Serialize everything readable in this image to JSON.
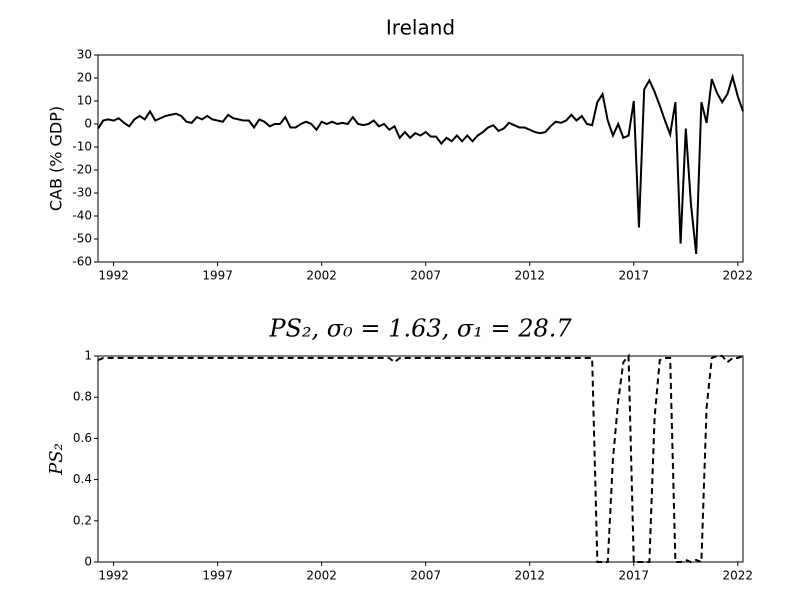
{
  "chart_data": [
    {
      "type": "line",
      "title": "Ireland",
      "ylabel": "CAB (% GDP)",
      "color": "#000000",
      "linestyle": "solid",
      "xlim": [
        1991.25,
        2022.25
      ],
      "xticks": [
        1992,
        1997,
        2002,
        2007,
        2012,
        2017,
        2022
      ],
      "ylim": [
        -60,
        30
      ],
      "yticks": [
        -60,
        -50,
        -40,
        -30,
        -20,
        -10,
        0,
        10,
        20,
        30
      ],
      "x": [
        1991.25,
        1991.5,
        1991.75,
        1992,
        1992.25,
        1992.5,
        1992.75,
        1993,
        1993.25,
        1993.5,
        1993.75,
        1994,
        1994.25,
        1994.5,
        1994.75,
        1995,
        1995.25,
        1995.5,
        1995.75,
        1996,
        1996.25,
        1996.5,
        1996.75,
        1997,
        1997.25,
        1997.5,
        1997.75,
        1998,
        1998.25,
        1998.5,
        1998.75,
        1999,
        1999.25,
        1999.5,
        1999.75,
        2000,
        2000.25,
        2000.5,
        2000.75,
        2001,
        2001.25,
        2001.5,
        2001.75,
        2002,
        2002.25,
        2002.5,
        2002.75,
        2003,
        2003.25,
        2003.5,
        2003.75,
        2004,
        2004.25,
        2004.5,
        2004.75,
        2005,
        2005.25,
        2005.5,
        2005.75,
        2006,
        2006.25,
        2006.5,
        2006.75,
        2007,
        2007.25,
        2007.5,
        2007.75,
        2008,
        2008.25,
        2008.5,
        2008.75,
        2009,
        2009.25,
        2009.5,
        2009.75,
        2010,
        2010.25,
        2010.5,
        2010.75,
        2011,
        2011.25,
        2011.5,
        2011.75,
        2012,
        2012.25,
        2012.5,
        2012.75,
        2013,
        2013.25,
        2013.5,
        2013.75,
        2014,
        2014.25,
        2014.5,
        2014.75,
        2015,
        2015.25,
        2015.5,
        2015.75,
        2016,
        2016.25,
        2016.5,
        2016.75,
        2017,
        2017.25,
        2017.5,
        2017.75,
        2018,
        2018.25,
        2018.5,
        2018.75,
        2019,
        2019.25,
        2019.5,
        2019.75,
        2020,
        2020.25,
        2020.5,
        2020.75,
        2021,
        2021.25,
        2021.5,
        2021.75,
        2022,
        2022.25
      ],
      "values": [
        -2,
        1.5,
        2,
        1.5,
        2.5,
        0.5,
        -1,
        2,
        3.5,
        2,
        5.5,
        1.5,
        2.5,
        3.5,
        4,
        4.5,
        3.5,
        1,
        0.5,
        3,
        2,
        3.5,
        2,
        1.5,
        1,
        4,
        2.5,
        2,
        1.5,
        1.5,
        -1.5,
        2,
        1,
        -1,
        0,
        0,
        3,
        -1.5,
        -1.5,
        0,
        1,
        0,
        -2.5,
        1,
        0,
        1,
        0,
        0.5,
        0,
        3,
        0,
        -0.5,
        0,
        1.5,
        -1,
        0,
        -2.5,
        -1,
        -6,
        -3.5,
        -6,
        -4,
        -5,
        -3.5,
        -5.5,
        -5.5,
        -8.5,
        -6,
        -7.5,
        -5,
        -7.5,
        -5,
        -7.5,
        -5,
        -3.5,
        -1.5,
        -0.5,
        -3,
        -2,
        0.5,
        -0.5,
        -1.5,
        -1.5,
        -2.5,
        -3.5,
        -4,
        -3.5,
        -1,
        1,
        0.5,
        1.5,
        4,
        1.5,
        3.5,
        0,
        -0.5,
        9.5,
        13,
        1.5,
        -5,
        0,
        -6,
        -5,
        10,
        -45,
        15,
        19,
        14,
        8,
        1.5,
        -4.5,
        9.5,
        -52,
        -2,
        -35,
        -56.5,
        9.5,
        0.5,
        19.5,
        13.5,
        9.5,
        13,
        20.5,
        12,
        5.5
      ]
    },
    {
      "type": "line",
      "title": "PS₂, σ₀ = 1.63, σ₁ = 28.7",
      "ylabel": "PS₂",
      "color": "#000000",
      "linestyle": "dashed",
      "xlim": [
        1991.25,
        2022.25
      ],
      "xticks": [
        1992,
        1997,
        2002,
        2007,
        2012,
        2017,
        2022
      ],
      "ylim": [
        0,
        1
      ],
      "yticks": [
        0,
        0.2,
        0.4,
        0.6,
        0.8,
        1
      ],
      "x": [
        1991.25,
        1991.5,
        1991.75,
        1992,
        1992.25,
        1992.5,
        1992.75,
        1993,
        1993.25,
        1993.5,
        1993.75,
        1994,
        1994.25,
        1994.5,
        1994.75,
        1995,
        1995.25,
        1995.5,
        1995.75,
        1996,
        1996.25,
        1996.5,
        1996.75,
        1997,
        1997.25,
        1997.5,
        1997.75,
        1998,
        1998.25,
        1998.5,
        1998.75,
        1999,
        1999.25,
        1999.5,
        1999.75,
        2000,
        2000.25,
        2000.5,
        2000.75,
        2001,
        2001.25,
        2001.5,
        2001.75,
        2002,
        2002.25,
        2002.5,
        2002.75,
        2003,
        2003.25,
        2003.5,
        2003.75,
        2004,
        2004.25,
        2004.5,
        2004.75,
        2005,
        2005.25,
        2005.5,
        2005.75,
        2006,
        2006.25,
        2006.5,
        2006.75,
        2007,
        2007.25,
        2007.5,
        2007.75,
        2008,
        2008.25,
        2008.5,
        2008.75,
        2009,
        2009.25,
        2009.5,
        2009.75,
        2010,
        2010.25,
        2010.5,
        2010.75,
        2011,
        2011.25,
        2011.5,
        2011.75,
        2012,
        2012.25,
        2012.5,
        2012.75,
        2013,
        2013.25,
        2013.5,
        2013.75,
        2014,
        2014.25,
        2014.5,
        2014.75,
        2015,
        2015.25,
        2015.5,
        2015.75,
        2016,
        2016.25,
        2016.5,
        2016.75,
        2017,
        2017.25,
        2017.5,
        2017.75,
        2018,
        2018.25,
        2018.5,
        2018.75,
        2019,
        2019.25,
        2019.5,
        2019.75,
        2020,
        2020.25,
        2020.5,
        2020.75,
        2021,
        2021.25,
        2021.5,
        2021.75,
        2022,
        2022.25
      ],
      "values": [
        0.98,
        0.99,
        0.99,
        0.99,
        0.99,
        0.99,
        0.99,
        0.99,
        0.99,
        0.99,
        0.99,
        0.99,
        0.99,
        0.99,
        0.99,
        0.99,
        0.99,
        0.99,
        0.99,
        0.99,
        0.99,
        0.99,
        0.99,
        0.99,
        0.99,
        0.99,
        0.99,
        0.99,
        0.99,
        0.99,
        0.99,
        0.99,
        0.99,
        0.99,
        0.99,
        0.99,
        0.99,
        0.99,
        0.99,
        0.99,
        0.99,
        0.99,
        0.99,
        0.99,
        0.99,
        0.99,
        0.99,
        0.99,
        0.99,
        0.99,
        0.99,
        0.99,
        0.99,
        0.99,
        0.99,
        0.99,
        0.99,
        0.97,
        0.99,
        0.99,
        0.99,
        0.99,
        0.99,
        0.99,
        0.99,
        0.99,
        0.99,
        0.99,
        0.99,
        0.99,
        0.99,
        0.99,
        0.99,
        0.99,
        0.99,
        0.99,
        0.99,
        0.99,
        0.99,
        0.99,
        0.99,
        0.99,
        0.99,
        0.99,
        0.99,
        0.99,
        0.99,
        0.99,
        0.99,
        0.99,
        0.99,
        0.99,
        0.99,
        0.99,
        0.99,
        0.99,
        0,
        0,
        0,
        0.5,
        0.78,
        0.97,
        1,
        0,
        0,
        0,
        0,
        0.7,
        0.98,
        0.99,
        0.99,
        0,
        0,
        0.01,
        0,
        0.01,
        0,
        0.75,
        0.99,
        1,
        1,
        0.97,
        0.99,
        0.99,
        1
      ]
    }
  ]
}
